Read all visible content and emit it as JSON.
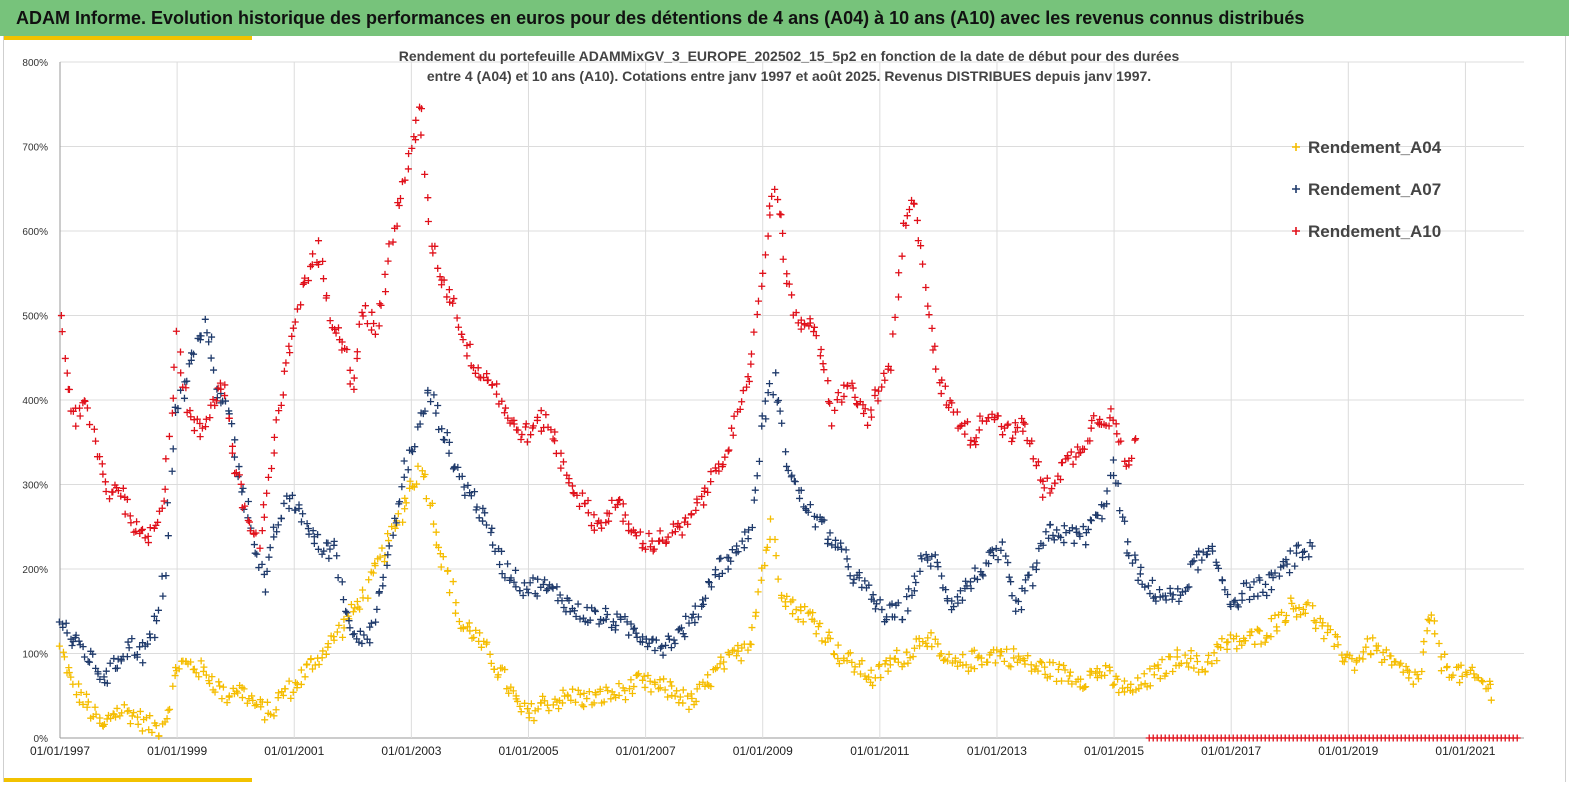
{
  "header": {
    "title": "ADAM Informe. Evolution historique des performances en euros pour des détentions de 4 ans (A04) à 10 ans (A10) avec les revenus connus distribués"
  },
  "colors": {
    "banner": "#77c37b",
    "accent": "#f2c200",
    "A04": "#f5bd00",
    "A07": "#1f3a6b",
    "A10": "#e0101a"
  },
  "chart_data": {
    "type": "scatter",
    "title": [
      "Rendement du portefeuille ADAMMixGV_3_EUROPE_202502_15_5p2  en fonction de la date de début pour des durées",
      "entre 4 (A04) et 10 ans (A10). Cotations entre janv 1997 et août 2025. Revenus DISTRIBUES depuis janv 1997."
    ],
    "xlabel": "",
    "ylabel": "",
    "x_range": [
      "1997-01-01",
      "2021-12-31"
    ],
    "x_ticks": [
      "01/01/1997",
      "01/01/1999",
      "01/01/2001",
      "01/01/2003",
      "01/01/2005",
      "01/01/2007",
      "01/01/2009",
      "01/01/2011",
      "01/01/2013",
      "01/01/2015",
      "01/01/2017",
      "01/01/2019",
      "01/01/2021"
    ],
    "y_range": [
      0,
      800
    ],
    "y_ticks": [
      "0%",
      "100%",
      "200%",
      "300%",
      "400%",
      "500%",
      "600%",
      "700%",
      "800%"
    ],
    "y_unit": "%",
    "grid": true,
    "legend_position": "top-right",
    "marker": "+",
    "series": [
      {
        "name": "Rendement_A04",
        "color": "#f5bd00",
        "points": [
          [
            1997.0,
            105
          ],
          [
            1997.2,
            65
          ],
          [
            1997.4,
            45
          ],
          [
            1997.6,
            25
          ],
          [
            1997.75,
            10
          ],
          [
            1997.9,
            30
          ],
          [
            1998.1,
            32
          ],
          [
            1998.3,
            25
          ],
          [
            1998.5,
            15
          ],
          [
            1998.7,
            12
          ],
          [
            1998.85,
            35
          ],
          [
            1999.0,
            88
          ],
          [
            1999.3,
            85
          ],
          [
            1999.6,
            70
          ],
          [
            1999.8,
            50
          ],
          [
            2000.0,
            60
          ],
          [
            2000.2,
            50
          ],
          [
            2000.4,
            35
          ],
          [
            2000.6,
            30
          ],
          [
            2000.8,
            55
          ],
          [
            2001.0,
            60
          ],
          [
            2001.2,
            80
          ],
          [
            2001.4,
            95
          ],
          [
            2001.6,
            110
          ],
          [
            2001.8,
            130
          ],
          [
            2002.0,
            150
          ],
          [
            2002.2,
            170
          ],
          [
            2002.4,
            200
          ],
          [
            2002.6,
            230
          ],
          [
            2002.8,
            260
          ],
          [
            2003.0,
            300
          ],
          [
            2003.2,
            320
          ],
          [
            2003.35,
            270
          ],
          [
            2003.5,
            220
          ],
          [
            2003.7,
            175
          ],
          [
            2003.85,
            130
          ],
          [
            2004.0,
            130
          ],
          [
            2004.2,
            110
          ],
          [
            2004.4,
            90
          ],
          [
            2004.6,
            70
          ],
          [
            2004.8,
            40
          ],
          [
            2005.0,
            25
          ],
          [
            2005.2,
            40
          ],
          [
            2005.5,
            45
          ],
          [
            2005.8,
            50
          ],
          [
            2006.0,
            45
          ],
          [
            2006.3,
            50
          ],
          [
            2006.6,
            55
          ],
          [
            2006.9,
            65
          ],
          [
            2007.2,
            60
          ],
          [
            2007.5,
            55
          ],
          [
            2007.8,
            40
          ],
          [
            2008.0,
            60
          ],
          [
            2008.3,
            85
          ],
          [
            2008.6,
            100
          ],
          [
            2008.8,
            120
          ],
          [
            2009.0,
            200
          ],
          [
            2009.15,
            250
          ],
          [
            2009.3,
            180
          ],
          [
            2009.5,
            155
          ],
          [
            2009.8,
            145
          ],
          [
            2010.0,
            130
          ],
          [
            2010.3,
            100
          ],
          [
            2010.6,
            85
          ],
          [
            2010.9,
            70
          ],
          [
            2011.2,
            90
          ],
          [
            2011.5,
            100
          ],
          [
            2011.8,
            125
          ],
          [
            2012.0,
            95
          ],
          [
            2012.3,
            85
          ],
          [
            2012.7,
            95
          ],
          [
            2013.0,
            100
          ],
          [
            2013.3,
            95
          ],
          [
            2013.6,
            85
          ],
          [
            2013.9,
            80
          ],
          [
            2014.2,
            75
          ],
          [
            2014.5,
            70
          ],
          [
            2014.8,
            80
          ],
          [
            2015.0,
            65
          ],
          [
            2015.3,
            55
          ],
          [
            2015.6,
            70
          ],
          [
            2015.9,
            85
          ],
          [
            2016.2,
            100
          ],
          [
            2016.5,
            80
          ],
          [
            2016.7,
            100
          ],
          [
            2016.9,
            110
          ],
          [
            2017.2,
            115
          ],
          [
            2017.5,
            120
          ],
          [
            2017.8,
            140
          ],
          [
            2018.0,
            155
          ],
          [
            2018.3,
            155
          ],
          [
            2018.6,
            125
          ],
          [
            2018.9,
            100
          ],
          [
            2019.1,
            90
          ],
          [
            2019.4,
            110
          ],
          [
            2019.7,
            90
          ],
          [
            2020.0,
            75
          ],
          [
            2020.2,
            70
          ],
          [
            2020.4,
            145
          ],
          [
            2020.6,
            90
          ],
          [
            2020.9,
            75
          ],
          [
            2021.2,
            70
          ],
          [
            2021.5,
            55
          ]
        ]
      },
      {
        "name": "Rendement_A07",
        "color": "#1f3a6b",
        "points": [
          [
            1997.0,
            145
          ],
          [
            1997.2,
            115
          ],
          [
            1997.4,
            105
          ],
          [
            1997.6,
            85
          ],
          [
            1997.8,
            70
          ],
          [
            1998.0,
            95
          ],
          [
            1998.2,
            110
          ],
          [
            1998.4,
            100
          ],
          [
            1998.6,
            120
          ],
          [
            1998.8,
            200
          ],
          [
            1998.95,
            380
          ],
          [
            1999.1,
            410
          ],
          [
            1999.3,
            460
          ],
          [
            1999.5,
            490
          ],
          [
            1999.7,
            410
          ],
          [
            1999.9,
            380
          ],
          [
            2000.1,
            300
          ],
          [
            2000.3,
            240
          ],
          [
            2000.5,
            180
          ],
          [
            2000.7,
            250
          ],
          [
            2000.9,
            280
          ],
          [
            2001.1,
            270
          ],
          [
            2001.3,
            240
          ],
          [
            2001.5,
            220
          ],
          [
            2001.7,
            230
          ],
          [
            2001.9,
            140
          ],
          [
            2002.1,
            125
          ],
          [
            2002.3,
            120
          ],
          [
            2002.5,
            180
          ],
          [
            2002.7,
            250
          ],
          [
            2002.9,
            320
          ],
          [
            2003.1,
            360
          ],
          [
            2003.3,
            410
          ],
          [
            2003.5,
            370
          ],
          [
            2003.7,
            330
          ],
          [
            2003.9,
            300
          ],
          [
            2004.1,
            280
          ],
          [
            2004.3,
            250
          ],
          [
            2004.6,
            200
          ],
          [
            2004.9,
            180
          ],
          [
            2005.2,
            180
          ],
          [
            2005.5,
            170
          ],
          [
            2005.8,
            150
          ],
          [
            2006.1,
            145
          ],
          [
            2006.4,
            140
          ],
          [
            2006.7,
            130
          ],
          [
            2007.0,
            120
          ],
          [
            2007.3,
            110
          ],
          [
            2007.6,
            125
          ],
          [
            2007.9,
            150
          ],
          [
            2008.2,
            200
          ],
          [
            2008.5,
            215
          ],
          [
            2008.8,
            250
          ],
          [
            2009.0,
            380
          ],
          [
            2009.2,
            425
          ],
          [
            2009.4,
            330
          ],
          [
            2009.6,
            290
          ],
          [
            2009.9,
            260
          ],
          [
            2010.2,
            235
          ],
          [
            2010.5,
            200
          ],
          [
            2010.8,
            170
          ],
          [
            2011.1,
            145
          ],
          [
            2011.4,
            150
          ],
          [
            2011.7,
            205
          ],
          [
            2011.9,
            215
          ],
          [
            2012.2,
            160
          ],
          [
            2012.5,
            180
          ],
          [
            2012.8,
            205
          ],
          [
            2013.1,
            220
          ],
          [
            2013.3,
            150
          ],
          [
            2013.6,
            190
          ],
          [
            2013.9,
            245
          ],
          [
            2014.2,
            240
          ],
          [
            2014.5,
            240
          ],
          [
            2014.8,
            270
          ],
          [
            2015.0,
            320
          ],
          [
            2015.2,
            230
          ],
          [
            2015.5,
            180
          ],
          [
            2015.8,
            170
          ],
          [
            2016.1,
            165
          ],
          [
            2016.4,
            210
          ],
          [
            2016.7,
            215
          ],
          [
            2017.0,
            160
          ],
          [
            2017.3,
            175
          ],
          [
            2017.6,
            180
          ],
          [
            2017.9,
            200
          ],
          [
            2018.1,
            215
          ],
          [
            2018.4,
            225
          ]
        ]
      },
      {
        "name": "Rendement_A10",
        "color": "#e0101a",
        "points": [
          [
            1997.0,
            505
          ],
          [
            1997.1,
            430
          ],
          [
            1997.25,
            375
          ],
          [
            1997.45,
            395
          ],
          [
            1997.6,
            350
          ],
          [
            1997.8,
            290
          ],
          [
            1998.0,
            300
          ],
          [
            1998.2,
            265
          ],
          [
            1998.4,
            235
          ],
          [
            1998.6,
            245
          ],
          [
            1998.8,
            300
          ],
          [
            1999.0,
            470
          ],
          [
            1999.2,
            380
          ],
          [
            1999.4,
            360
          ],
          [
            1999.6,
            400
          ],
          [
            1999.8,
            420
          ],
          [
            2000.0,
            320
          ],
          [
            2000.2,
            260
          ],
          [
            2000.4,
            230
          ],
          [
            2000.6,
            320
          ],
          [
            2000.8,
            410
          ],
          [
            2001.0,
            490
          ],
          [
            2001.2,
            545
          ],
          [
            2001.4,
            580
          ],
          [
            2001.6,
            500
          ],
          [
            2001.8,
            480
          ],
          [
            2002.0,
            420
          ],
          [
            2002.2,
            510
          ],
          [
            2002.4,
            480
          ],
          [
            2002.6,
            560
          ],
          [
            2002.8,
            640
          ],
          [
            2003.0,
            690
          ],
          [
            2003.15,
            750
          ],
          [
            2003.3,
            600
          ],
          [
            2003.5,
            545
          ],
          [
            2003.7,
            520
          ],
          [
            2003.9,
            470
          ],
          [
            2004.1,
            440
          ],
          [
            2004.4,
            420
          ],
          [
            2004.7,
            370
          ],
          [
            2005.0,
            360
          ],
          [
            2005.3,
            380
          ],
          [
            2005.6,
            320
          ],
          [
            2005.9,
            280
          ],
          [
            2006.2,
            250
          ],
          [
            2006.5,
            280
          ],
          [
            2006.8,
            240
          ],
          [
            2007.1,
            230
          ],
          [
            2007.4,
            240
          ],
          [
            2007.7,
            250
          ],
          [
            2008.0,
            290
          ],
          [
            2008.3,
            330
          ],
          [
            2008.6,
            380
          ],
          [
            2008.8,
            440
          ],
          [
            2009.0,
            560
          ],
          [
            2009.2,
            660
          ],
          [
            2009.4,
            560
          ],
          [
            2009.6,
            480
          ],
          [
            2009.8,
            500
          ],
          [
            2010.0,
            450
          ],
          [
            2010.2,
            380
          ],
          [
            2010.4,
            420
          ],
          [
            2010.6,
            400
          ],
          [
            2010.8,
            380
          ],
          [
            2011.0,
            410
          ],
          [
            2011.2,
            440
          ],
          [
            2011.4,
            600
          ],
          [
            2011.6,
            640
          ],
          [
            2011.8,
            520
          ],
          [
            2012.0,
            420
          ],
          [
            2012.3,
            380
          ],
          [
            2012.6,
            355
          ],
          [
            2012.9,
            390
          ],
          [
            2013.2,
            360
          ],
          [
            2013.5,
            370
          ],
          [
            2013.8,
            290
          ],
          [
            2014.1,
            320
          ],
          [
            2014.4,
            340
          ],
          [
            2014.7,
            380
          ],
          [
            2015.0,
            380
          ],
          [
            2015.2,
            320
          ],
          [
            2015.4,
            355
          ]
        ]
      }
    ],
    "baseline_band": {
      "series": "Rendement_A10",
      "from": 2015.6,
      "to": 2021.9,
      "value": 0
    }
  }
}
